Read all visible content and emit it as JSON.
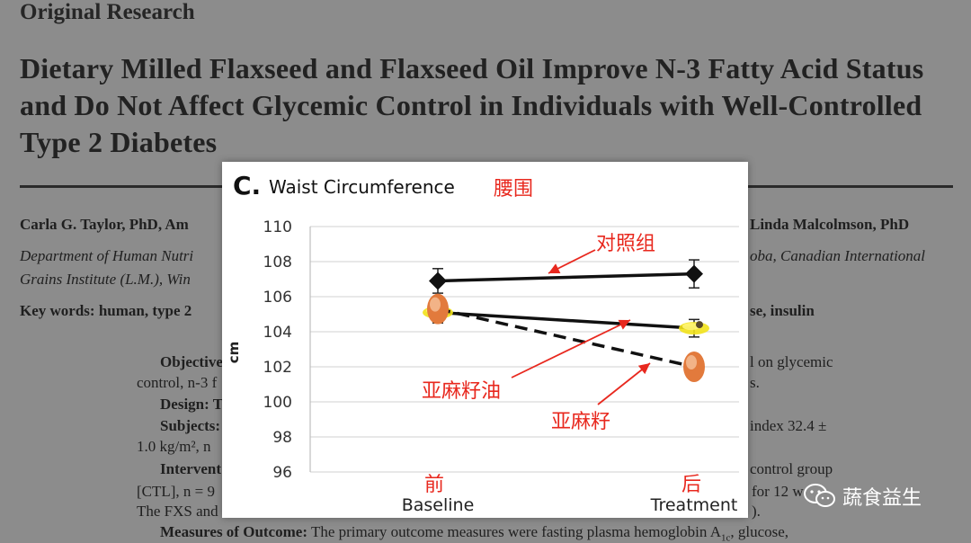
{
  "paper": {
    "section_label": "Original Research",
    "title": "Dietary Milled Flaxseed and Flaxseed Oil Improve N-3 Fatty Acid Status and Do Not Affect Glycemic Control in Individuals with Well-Controlled Type 2 Diabetes",
    "authors_left": "Carla G. Taylor, PhD, Am",
    "authors_right": "Linda Malcolmson, PhD",
    "affil_left_1": "Department of Human Nutri",
    "affil_right_1": "oba, Canadian International",
    "affil_left_2": "Grains Institute (L.M.), Win",
    "keywords_left": "Key words: human, type 2",
    "keywords_right": "se, insulin",
    "objective_label": "Objective",
    "objective_right": "l on glycemic",
    "control_left": "control, n-3 f",
    "control_right": "s.",
    "design_label": "Design: T",
    "subjects_label": "Subjects:",
    "subjects_right": "index 32.4 ±",
    "bmi_left": "1.0 kg/m², n",
    "intervention_label": "Intervent",
    "intervention_right": "control group",
    "ctl_left": "[CTL], n = 9",
    "ctl_right": "for 12 w",
    "fxs_left": "The FXS and",
    "fxs_right": ").",
    "outcome_label": "Measures of Outcome:",
    "outcome_text": "The primary outcome measures were fasting plasma hemoglobin A",
    "outcome_sub": "1c",
    "outcome_tail": ", glucose,"
  },
  "chart": {
    "panel_letter": "C.",
    "title": "Waist Circumference",
    "title_cn": "腰围",
    "ylabel": "cm",
    "y_ticks": [
      "110",
      "108",
      "106",
      "104",
      "102",
      "100",
      "98",
      "96"
    ],
    "x_labels": [
      "Baseline",
      "Treatment"
    ],
    "x_labels_cn": [
      "前",
      "后"
    ],
    "annotations": [
      "对照组",
      "亚麻籽油",
      "亚麻籽"
    ]
  },
  "watermark": {
    "text": "蔬食益生",
    "icon": "wechat-icon"
  },
  "colors": {
    "annotation_red": "#e8281e",
    "line": "#111111",
    "grid": "#d9d9d9"
  },
  "chart_data": {
    "type": "line",
    "title": "Waist Circumference",
    "ylabel": "cm",
    "categories": [
      "Baseline",
      "Treatment"
    ],
    "ylim": [
      96,
      110
    ],
    "y_ticks": [
      96,
      98,
      100,
      102,
      104,
      106,
      108,
      110
    ],
    "grid": true,
    "series": [
      {
        "name": "对照组",
        "values": [
          106.9,
          107.3
        ],
        "marker": "diamond",
        "style": "solid",
        "error": [
          0.7,
          0.8
        ]
      },
      {
        "name": "亚麻籽油",
        "values": [
          105.1,
          104.2
        ],
        "marker": "oil-capsule-icon",
        "style": "solid",
        "error": [
          0.6,
          0.5
        ]
      },
      {
        "name": "亚麻籽",
        "values": [
          105.3,
          102.0
        ],
        "marker": "flaxseed-icon",
        "style": "dashed",
        "error": [
          0.6,
          0.5
        ]
      }
    ]
  }
}
